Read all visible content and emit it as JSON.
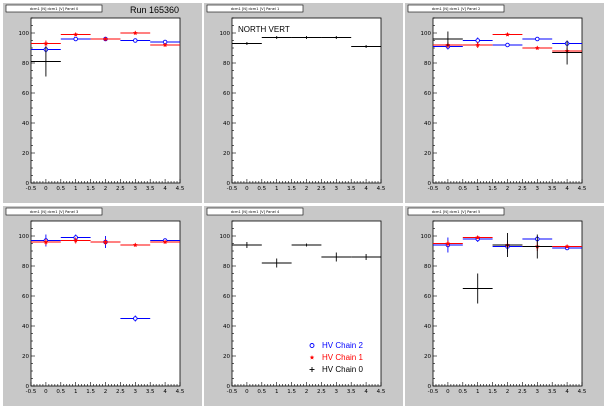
{
  "run_label": "Run 165360",
  "annotation": "NORTH VERT",
  "colors": {
    "chain2": "#0000ff",
    "chain1": "#ff0000",
    "chain0": "#000000"
  },
  "legend": {
    "placement": "bottom-right of middle-bottom panel",
    "entries": [
      {
        "label": "HV Chain 2",
        "color": "#0000ff",
        "marker": "open-circle"
      },
      {
        "label": "HV Chain 1",
        "color": "#ff0000",
        "marker": "star"
      },
      {
        "label": "HV Chain 0",
        "color": "#000000",
        "marker": "cross"
      }
    ]
  },
  "chart_data": [
    {
      "type": "scatter",
      "title": "dcm1 [N] dcm1 [V] Panel 0",
      "xlim": [
        -0.5,
        4.5
      ],
      "ylim": [
        0,
        110
      ],
      "xticks": [
        "-0.5",
        "0",
        "0.5",
        "1",
        "1.5",
        "2",
        "2.5",
        "3",
        "3.5",
        "4",
        "4.5"
      ],
      "yticks": [
        "0",
        "20",
        "40",
        "60",
        "80",
        "100"
      ],
      "series": [
        {
          "name": "HV Chain 2",
          "color": "#0000ff",
          "marker": "open-circle",
          "x": [
            0,
            1,
            2,
            3,
            4
          ],
          "y": [
            89,
            96,
            96,
            95,
            94
          ],
          "yerr": [
            2,
            1,
            1,
            1,
            1
          ]
        },
        {
          "name": "HV Chain 1",
          "color": "#ff0000",
          "marker": "star",
          "x": [
            0,
            1,
            2,
            3,
            4
          ],
          "y": [
            93,
            99,
            96,
            100,
            92
          ],
          "yerr": [
            2,
            1,
            1,
            1,
            1
          ]
        },
        {
          "name": "HV Chain 0",
          "color": "#000000",
          "marker": "cross",
          "x": [
            0
          ],
          "y": [
            81
          ],
          "yerr": [
            10
          ]
        }
      ]
    },
    {
      "type": "scatter",
      "title": "dcm1 [N] dcm1 [V] Panel 1",
      "xlim": [
        -0.5,
        4.5
      ],
      "ylim": [
        0,
        110
      ],
      "xticks": [
        "-0.5",
        "0",
        "0.5",
        "1",
        "1.5",
        "2",
        "2.5",
        "3",
        "3.5",
        "4",
        "4.5"
      ],
      "yticks": [
        "0",
        "20",
        "40",
        "60",
        "80",
        "100"
      ],
      "series": [
        {
          "name": "HV Chain 0",
          "color": "#000000",
          "marker": "cross",
          "x": [
            0,
            1,
            2,
            3,
            4
          ],
          "y": [
            93,
            97,
            97,
            97,
            91
          ],
          "yerr": [
            1,
            1,
            1,
            1,
            1
          ]
        }
      ]
    },
    {
      "type": "scatter",
      "title": "dcm1 [N] dcm1 [V] Panel 2",
      "xlim": [
        -0.5,
        4.5
      ],
      "ylim": [
        0,
        110
      ],
      "xticks": [
        "-0.5",
        "0",
        "0.5",
        "1",
        "1.5",
        "2",
        "2.5",
        "3",
        "3.5",
        "4",
        "4.5"
      ],
      "yticks": [
        "0",
        "20",
        "40",
        "60",
        "80",
        "100"
      ],
      "series": [
        {
          "name": "HV Chain 2",
          "color": "#0000ff",
          "marker": "open-circle",
          "x": [
            0,
            1,
            2,
            3,
            4
          ],
          "y": [
            91,
            95,
            92,
            96,
            93
          ],
          "yerr": [
            2,
            2,
            1,
            1,
            1
          ]
        },
        {
          "name": "HV Chain 1",
          "color": "#ff0000",
          "marker": "star",
          "x": [
            0,
            1,
            2,
            3,
            4
          ],
          "y": [
            92,
            92,
            99,
            90,
            88
          ],
          "yerr": [
            2,
            2,
            1,
            1,
            2
          ]
        },
        {
          "name": "HV Chain 0",
          "color": "#000000",
          "marker": "cross",
          "x": [
            0,
            4
          ],
          "y": [
            96,
            87
          ],
          "yerr": [
            5,
            8
          ]
        }
      ]
    },
    {
      "type": "scatter",
      "title": "dcm1 [N] dcm1 [V] Panel 3",
      "xlim": [
        -0.5,
        4.5
      ],
      "ylim": [
        0,
        110
      ],
      "xticks": [
        "-0.5",
        "0",
        "0.5",
        "1",
        "1.5",
        "2",
        "2.5",
        "3",
        "3.5",
        "4",
        "4.5"
      ],
      "yticks": [
        "0",
        "20",
        "40",
        "60",
        "80",
        "100"
      ],
      "series": [
        {
          "name": "HV Chain 2",
          "color": "#0000ff",
          "marker": "open-circle",
          "x": [
            0,
            1,
            2,
            3,
            4
          ],
          "y": [
            97,
            99,
            96,
            45,
            97
          ],
          "yerr": [
            4,
            2,
            4,
            2,
            1
          ]
        },
        {
          "name": "HV Chain 1",
          "color": "#ff0000",
          "marker": "star",
          "x": [
            0,
            1,
            2,
            3,
            4
          ],
          "y": [
            96,
            97,
            96,
            94,
            96
          ],
          "yerr": [
            2,
            2,
            2,
            1,
            1
          ]
        }
      ]
    },
    {
      "type": "scatter",
      "title": "dcm1 [N] dcm1 [V] Panel 4",
      "xlim": [
        -0.5,
        4.5
      ],
      "ylim": [
        0,
        110
      ],
      "xticks": [
        "-0.5",
        "0",
        "0.5",
        "1",
        "1.5",
        "2",
        "2.5",
        "3",
        "3.5",
        "4",
        "4.5"
      ],
      "yticks": [
        "0",
        "20",
        "40",
        "60",
        "80",
        "100"
      ],
      "series": [
        {
          "name": "HV Chain 0",
          "color": "#000000",
          "marker": "cross",
          "x": [
            0,
            1,
            2,
            3,
            4
          ],
          "y": [
            94,
            82,
            94,
            86,
            86
          ],
          "yerr": [
            2,
            3,
            1,
            3,
            2
          ]
        }
      ]
    },
    {
      "type": "scatter",
      "title": "dcm1 [N] dcm1 [V] Panel 5",
      "xlim": [
        -0.5,
        4.5
      ],
      "ylim": [
        0,
        110
      ],
      "xticks": [
        "-0.5",
        "0",
        "0.5",
        "1",
        "1.5",
        "2",
        "2.5",
        "3",
        "3.5",
        "4",
        "4.5"
      ],
      "yticks": [
        "0",
        "20",
        "40",
        "60",
        "80",
        "100"
      ],
      "series": [
        {
          "name": "HV Chain 2",
          "color": "#0000ff",
          "marker": "open-circle",
          "x": [
            0,
            1,
            2,
            3,
            4
          ],
          "y": [
            94,
            98,
            93,
            98,
            92
          ],
          "yerr": [
            5,
            2,
            4,
            2,
            1
          ]
        },
        {
          "name": "HV Chain 1",
          "color": "#ff0000",
          "marker": "star",
          "x": [
            0,
            1,
            2,
            3,
            4
          ],
          "y": [
            95,
            99,
            94,
            93,
            93
          ],
          "yerr": [
            2,
            1,
            2,
            3,
            1
          ]
        },
        {
          "name": "HV Chain 0",
          "color": "#000000",
          "marker": "cross",
          "x": [
            1,
            2,
            3
          ],
          "y": [
            65,
            94,
            93
          ],
          "yerr": [
            10,
            8,
            8
          ]
        }
      ]
    }
  ]
}
